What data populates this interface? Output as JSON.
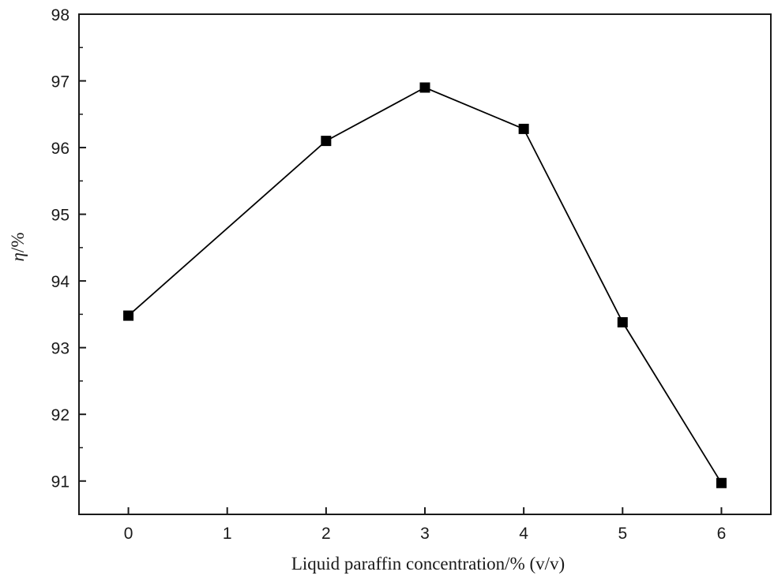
{
  "chart_data": {
    "type": "line",
    "title": "",
    "xlabel": "Liquid paraffin concentration/% (v/v)",
    "ylabel": "η/%",
    "xlim": [
      -0.5,
      6.5
    ],
    "ylim": [
      90.5,
      98
    ],
    "x_ticks": [
      0,
      1,
      2,
      3,
      4,
      5,
      6
    ],
    "y_ticks": [
      91,
      92,
      93,
      94,
      95,
      96,
      97,
      98
    ],
    "grid": false,
    "legend": "none",
    "marker": "square",
    "line_color": "#000000",
    "marker_color": "#000000",
    "series": [
      {
        "x": [
          0,
          2,
          3,
          4,
          5,
          6
        ],
        "y": [
          93.48,
          96.1,
          96.9,
          96.28,
          93.38,
          90.97
        ]
      }
    ]
  }
}
